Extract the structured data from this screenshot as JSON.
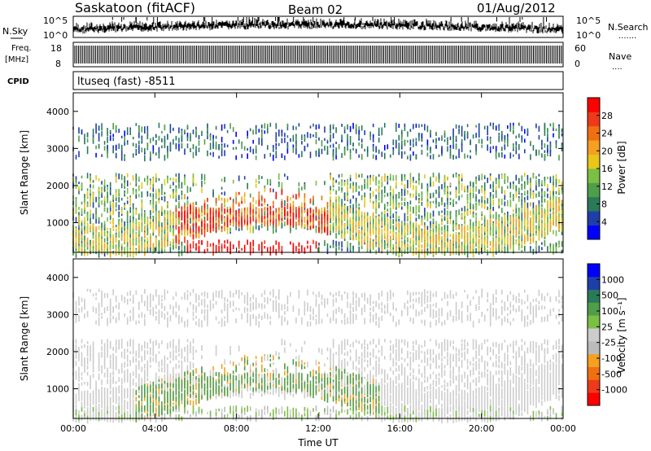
{
  "header": {
    "station": "Saskatoon (fitACF)",
    "beam": "Beam 02",
    "date": "01/Aug/2012"
  },
  "noise_panel": {
    "left_label": "N.Sky",
    "right_label": "N.Search",
    "left_ticks": [
      "10^5",
      "10^0"
    ],
    "right_ticks": [
      "10^5",
      "10^0"
    ],
    "right_legend": "·······"
  },
  "freq_panel": {
    "left_label_1": "Freq.",
    "left_label_2": "[MHz]",
    "right_label": "Nave",
    "left_ticks": [
      "18",
      "8"
    ],
    "right_ticks": [
      "60",
      "0"
    ],
    "right_legend": "····"
  },
  "cpid": {
    "label": "CPID",
    "text": "ltuseq (fast) -8511"
  },
  "colors": {
    "power_scale": [
      "#0000ff",
      "#1f3fa8",
      "#2a7a5a",
      "#4f9e4a",
      "#7bc043",
      "#e8c61a",
      "#f5a020",
      "#f07010",
      "#ee3a1a",
      "#ff0000"
    ],
    "velocity_scale": [
      "#ff0000",
      "#ee3a1a",
      "#f07010",
      "#f5a020",
      "#bbbbbb",
      "#cccccc",
      "#7bc043",
      "#4f9e4a",
      "#2a7a5a",
      "#1f3fa8",
      "#0000ff"
    ]
  },
  "chart_data": [
    {
      "type": "heatmap",
      "quantity": "power",
      "xlabel": "",
      "ylabel": "Slant Range [km]",
      "xlim": [
        "00:00",
        "24:00"
      ],
      "ylim": [
        200,
        4500
      ],
      "yticks": [
        "1000",
        "2000",
        "3000",
        "4000"
      ],
      "colorbar_label": "Power [dB]",
      "colorbar_ticks": [
        "4",
        "8",
        "12",
        "16",
        "20",
        "24",
        "28"
      ],
      "colorbar_range": [
        0,
        30
      ]
    },
    {
      "type": "heatmap",
      "quantity": "velocity",
      "xlabel": "Time UT",
      "ylabel": "Slant Range [km]",
      "xlim": [
        "00:00",
        "24:00"
      ],
      "ylim": [
        200,
        4500
      ],
      "xticks": [
        "00:00",
        "04:00",
        "08:00",
        "12:00",
        "16:00",
        "20:00",
        "00:00"
      ],
      "yticks": [
        "1000",
        "2000",
        "3000",
        "4000"
      ],
      "colorbar_label": "Velocity [m s⁻¹]",
      "colorbar_ticks": [
        "1000",
        "500",
        "100",
        "25",
        "-25",
        "-100",
        "-500",
        "-1000"
      ]
    }
  ]
}
